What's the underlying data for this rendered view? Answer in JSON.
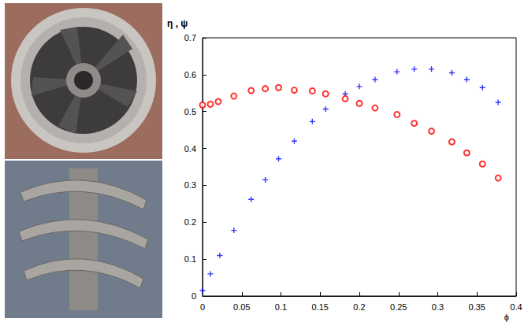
{
  "chart_data": {
    "type": "scatter",
    "x_label": "ϕ",
    "y_label": "η , ψ",
    "xlim": [
      0,
      0.4
    ],
    "xticks": [
      0,
      0.05,
      0.1,
      0.15,
      0.2,
      0.25,
      0.3,
      0.35,
      0.4
    ],
    "ylim": [
      0,
      0.7
    ],
    "yticks": [
      0,
      0.1,
      0.2,
      0.3,
      0.4,
      0.5,
      0.6,
      0.7
    ],
    "grid": false,
    "series": [
      {
        "name": "η",
        "color": "#0000ff",
        "marker": "plus",
        "x": [
          0,
          0.01,
          0.022,
          0.04,
          0.062,
          0.08,
          0.097,
          0.117,
          0.14,
          0.157,
          0.182,
          0.2,
          0.22,
          0.248,
          0.27,
          0.292,
          0.318,
          0.337,
          0.357,
          0.377
        ],
        "values": [
          0.015,
          0.06,
          0.11,
          0.178,
          0.262,
          0.315,
          0.372,
          0.42,
          0.473,
          0.507,
          0.548,
          0.568,
          0.587,
          0.608,
          0.615,
          0.615,
          0.605,
          0.587,
          0.565,
          0.525
        ]
      },
      {
        "name": "ψ",
        "color": "#ff0000",
        "marker": "circle_open",
        "x": [
          0,
          0.01,
          0.02,
          0.04,
          0.062,
          0.08,
          0.097,
          0.117,
          0.14,
          0.157,
          0.182,
          0.2,
          0.22,
          0.248,
          0.27,
          0.292,
          0.318,
          0.337,
          0.357,
          0.377
        ],
        "values": [
          0.518,
          0.52,
          0.527,
          0.542,
          0.557,
          0.562,
          0.565,
          0.558,
          0.556,
          0.548,
          0.535,
          0.522,
          0.51,
          0.492,
          0.468,
          0.447,
          0.418,
          0.388,
          0.358,
          0.32
        ]
      }
    ]
  }
}
